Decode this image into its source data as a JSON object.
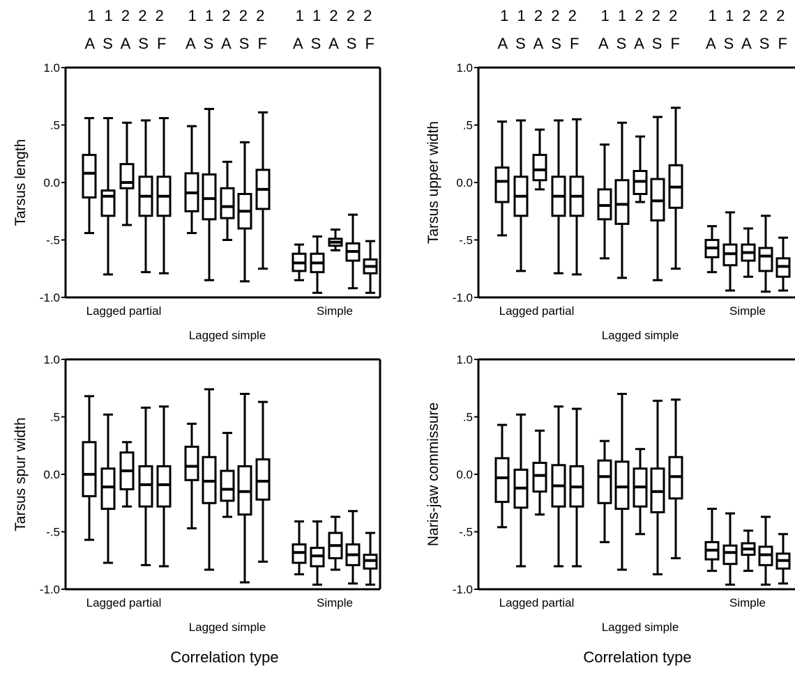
{
  "figure": {
    "group_letters": [
      "1 1 2 2 2",
      "A S A S F"
    ],
    "x_axis_title": "Correlation type",
    "categories": [
      "Lagged partial",
      "Lagged simple",
      "Simple"
    ]
  },
  "chart_data": [
    {
      "type": "boxplot",
      "ylabel": "Tarsus length",
      "ylim": [
        -1.0,
        1.0
      ],
      "yticks": [
        "1.0",
        ".5",
        "0.0",
        "-.5",
        "-1.0"
      ],
      "groups": [
        "Lagged partial",
        "Lagged simple",
        "Simple"
      ],
      "box_labels": [
        "1A",
        "1S",
        "2A",
        "2S",
        "2F"
      ],
      "boxes": [
        [
          [
            -0.44,
            -0.13,
            0.08,
            0.24,
            0.56
          ],
          [
            -0.8,
            -0.29,
            -0.12,
            -0.07,
            0.56
          ],
          [
            -0.37,
            -0.05,
            0.0,
            0.16,
            0.52
          ],
          [
            -0.78,
            -0.29,
            -0.12,
            0.05,
            0.54
          ],
          [
            -0.79,
            -0.29,
            -0.12,
            0.05,
            0.56
          ]
        ],
        [
          [
            -0.44,
            -0.25,
            -0.09,
            0.08,
            0.49
          ],
          [
            -0.85,
            -0.32,
            -0.14,
            0.07,
            0.64
          ],
          [
            -0.5,
            -0.31,
            -0.21,
            -0.05,
            0.18
          ],
          [
            -0.86,
            -0.4,
            -0.25,
            -0.1,
            0.35
          ],
          [
            -0.75,
            -0.23,
            -0.06,
            0.11,
            0.61
          ]
        ],
        [
          [
            -0.85,
            -0.77,
            -0.7,
            -0.62,
            -0.54
          ],
          [
            -0.96,
            -0.78,
            -0.7,
            -0.62,
            -0.47
          ],
          [
            -0.59,
            -0.55,
            -0.52,
            -0.49,
            -0.41
          ],
          [
            -0.92,
            -0.68,
            -0.6,
            -0.53,
            -0.28
          ],
          [
            -0.96,
            -0.79,
            -0.73,
            -0.67,
            -0.51
          ]
        ]
      ]
    },
    {
      "type": "boxplot",
      "ylabel": "Tarsus upper width",
      "ylim": [
        -1.0,
        1.0
      ],
      "yticks": [
        "1.0",
        ".5",
        "0.0",
        "-.5",
        "-1.0"
      ],
      "groups": [
        "Lagged partial",
        "Lagged simple",
        "Simple"
      ],
      "box_labels": [
        "1A",
        "1S",
        "2A",
        "2S",
        "2F"
      ],
      "boxes": [
        [
          [
            -0.46,
            -0.17,
            0.01,
            0.13,
            0.53
          ],
          [
            -0.77,
            -0.29,
            -0.12,
            0.05,
            0.54
          ],
          [
            -0.06,
            0.02,
            0.11,
            0.24,
            0.46
          ],
          [
            -0.79,
            -0.29,
            -0.12,
            0.05,
            0.54
          ],
          [
            -0.8,
            -0.29,
            -0.12,
            0.05,
            0.55
          ]
        ],
        [
          [
            -0.66,
            -0.32,
            -0.2,
            -0.06,
            0.33
          ],
          [
            -0.83,
            -0.36,
            -0.19,
            0.02,
            0.52
          ],
          [
            -0.17,
            -0.1,
            0.01,
            0.1,
            0.4
          ],
          [
            -0.85,
            -0.33,
            -0.16,
            0.03,
            0.57
          ],
          [
            -0.75,
            -0.22,
            -0.04,
            0.15,
            0.65
          ]
        ],
        [
          [
            -0.78,
            -0.65,
            -0.57,
            -0.5,
            -0.38
          ],
          [
            -0.94,
            -0.72,
            -0.62,
            -0.54,
            -0.26
          ],
          [
            -0.82,
            -0.68,
            -0.61,
            -0.54,
            -0.4
          ],
          [
            -0.95,
            -0.77,
            -0.64,
            -0.57,
            -0.29
          ],
          [
            -0.94,
            -0.82,
            -0.73,
            -0.66,
            -0.48
          ]
        ]
      ]
    },
    {
      "type": "boxplot",
      "ylabel": "Tarsus spur width",
      "ylim": [
        -1.0,
        1.0
      ],
      "yticks": [
        "1.0",
        ".5",
        "0.0",
        "-.5",
        "-1.0"
      ],
      "groups": [
        "Lagged partial",
        "Lagged simple",
        "Simple"
      ],
      "box_labels": [
        "1A",
        "1S",
        "2A",
        "2S",
        "2F"
      ],
      "boxes": [
        [
          [
            -0.57,
            -0.19,
            0.0,
            0.28,
            0.68
          ],
          [
            -0.77,
            -0.3,
            -0.11,
            0.05,
            0.52
          ],
          [
            -0.28,
            -0.13,
            0.03,
            0.19,
            0.28
          ],
          [
            -0.79,
            -0.28,
            -0.09,
            0.07,
            0.58
          ],
          [
            -0.8,
            -0.28,
            -0.09,
            0.07,
            0.59
          ]
        ],
        [
          [
            -0.47,
            -0.05,
            0.07,
            0.24,
            0.44
          ],
          [
            -0.83,
            -0.25,
            -0.06,
            0.15,
            0.74
          ],
          [
            -0.37,
            -0.23,
            -0.13,
            0.03,
            0.36
          ],
          [
            -0.94,
            -0.35,
            -0.15,
            0.07,
            0.7
          ],
          [
            -0.76,
            -0.22,
            -0.06,
            0.13,
            0.63
          ]
        ],
        [
          [
            -0.87,
            -0.77,
            -0.68,
            -0.61,
            -0.41
          ],
          [
            -0.96,
            -0.8,
            -0.71,
            -0.64,
            -0.41
          ],
          [
            -0.83,
            -0.73,
            -0.62,
            -0.51,
            -0.37
          ],
          [
            -0.95,
            -0.79,
            -0.7,
            -0.61,
            -0.32
          ],
          [
            -0.96,
            -0.82,
            -0.75,
            -0.7,
            -0.51
          ]
        ]
      ]
    },
    {
      "type": "boxplot",
      "ylabel": "Naris-jaw commissure",
      "ylim": [
        -1.0,
        1.0
      ],
      "yticks": [
        "1.0",
        ".5",
        "0.0",
        "-.5",
        "-1.0"
      ],
      "groups": [
        "Lagged partial",
        "Lagged simple",
        "Simple"
      ],
      "box_labels": [
        "1A",
        "1S",
        "2A",
        "2S",
        "2F"
      ],
      "boxes": [
        [
          [
            -0.46,
            -0.24,
            -0.03,
            0.14,
            0.43
          ],
          [
            -0.8,
            -0.29,
            -0.12,
            0.04,
            0.52
          ],
          [
            -0.35,
            -0.15,
            -0.01,
            0.1,
            0.38
          ],
          [
            -0.8,
            -0.28,
            -0.1,
            0.08,
            0.59
          ],
          [
            -0.8,
            -0.28,
            -0.11,
            0.07,
            0.57
          ]
        ],
        [
          [
            -0.59,
            -0.25,
            -0.02,
            0.12,
            0.29
          ],
          [
            -0.83,
            -0.3,
            -0.11,
            0.11,
            0.7
          ],
          [
            -0.52,
            -0.28,
            -0.11,
            0.05,
            0.22
          ],
          [
            -0.87,
            -0.33,
            -0.15,
            0.05,
            0.64
          ],
          [
            -0.73,
            -0.21,
            -0.02,
            0.15,
            0.65
          ]
        ],
        [
          [
            -0.84,
            -0.74,
            -0.66,
            -0.59,
            -0.3
          ],
          [
            -0.96,
            -0.78,
            -0.68,
            -0.62,
            -0.34
          ],
          [
            -0.84,
            -0.7,
            -0.65,
            -0.6,
            -0.49
          ],
          [
            -0.96,
            -0.79,
            -0.7,
            -0.63,
            -0.37
          ],
          [
            -0.95,
            -0.82,
            -0.75,
            -0.69,
            -0.52
          ]
        ]
      ]
    }
  ]
}
